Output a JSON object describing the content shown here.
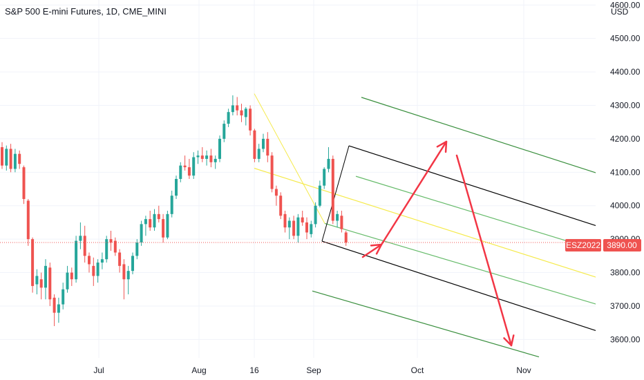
{
  "chart_data": {
    "type": "candlestick",
    "title": "S&P 500 E-mini Futures, 1D, CME_MINI",
    "currency": "USD",
    "y_ticks": [
      "4600.00",
      "4500.00",
      "4400.00",
      "4300.00",
      "4200.00",
      "4100.00",
      "4000.00",
      "3900.00",
      "3800.00",
      "3700.00",
      "3600.00"
    ],
    "x_ticks": [
      "Jul",
      "Aug",
      "16",
      "Sep",
      "Oct",
      "Nov"
    ],
    "ylim": [
      3545,
      4615
    ],
    "symbol_badge": "ESZ2022",
    "last_price": 3890.0,
    "last_price_label": "3890.00",
    "colors": {
      "up": "#26a69a",
      "down": "#ef5350",
      "last_price_line": "#ef5350",
      "channel_mid": "#f5ea4a",
      "channel_inner": "#66bb6a",
      "channel_outer": "#388e3c",
      "channel_base": "#000000",
      "projection_arrows": "#f23645"
    },
    "candles": [
      {
        "o": 4175,
        "h": 4190,
        "l": 4110,
        "c": 4120
      },
      {
        "o": 4120,
        "h": 4180,
        "l": 4105,
        "c": 4170
      },
      {
        "o": 4170,
        "h": 4185,
        "l": 4100,
        "c": 4110
      },
      {
        "o": 4110,
        "h": 4170,
        "l": 4100,
        "c": 4155
      },
      {
        "o": 4155,
        "h": 4165,
        "l": 4110,
        "c": 4125
      },
      {
        "o": 4115,
        "h": 4120,
        "l": 4005,
        "c": 4020
      },
      {
        "o": 4015,
        "h": 4020,
        "l": 3880,
        "c": 3900
      },
      {
        "o": 3900,
        "h": 3905,
        "l": 3740,
        "c": 3760
      },
      {
        "o": 3765,
        "h": 3810,
        "l": 3735,
        "c": 3790
      },
      {
        "o": 3780,
        "h": 3800,
        "l": 3720,
        "c": 3755
      },
      {
        "o": 3755,
        "h": 3840,
        "l": 3720,
        "c": 3820
      },
      {
        "o": 3815,
        "h": 3830,
        "l": 3700,
        "c": 3720
      },
      {
        "o": 3725,
        "h": 3735,
        "l": 3640,
        "c": 3680
      },
      {
        "o": 3680,
        "h": 3725,
        "l": 3650,
        "c": 3705
      },
      {
        "o": 3705,
        "h": 3770,
        "l": 3690,
        "c": 3750
      },
      {
        "o": 3750,
        "h": 3820,
        "l": 3740,
        "c": 3800
      },
      {
        "o": 3800,
        "h": 3815,
        "l": 3760,
        "c": 3780
      },
      {
        "o": 3780,
        "h": 3910,
        "l": 3770,
        "c": 3895
      },
      {
        "o": 3895,
        "h": 3950,
        "l": 3870,
        "c": 3910
      },
      {
        "o": 3910,
        "h": 3940,
        "l": 3830,
        "c": 3850
      },
      {
        "o": 3850,
        "h": 3860,
        "l": 3800,
        "c": 3825
      },
      {
        "o": 3820,
        "h": 3845,
        "l": 3760,
        "c": 3790
      },
      {
        "o": 3790,
        "h": 3840,
        "l": 3770,
        "c": 3830
      },
      {
        "o": 3830,
        "h": 3860,
        "l": 3810,
        "c": 3840
      },
      {
        "o": 3840,
        "h": 3910,
        "l": 3830,
        "c": 3900
      },
      {
        "o": 3900,
        "h": 3925,
        "l": 3865,
        "c": 3890
      },
      {
        "o": 3895,
        "h": 3905,
        "l": 3850,
        "c": 3860
      },
      {
        "o": 3860,
        "h": 3870,
        "l": 3800,
        "c": 3820
      },
      {
        "o": 3825,
        "h": 3840,
        "l": 3720,
        "c": 3780
      },
      {
        "o": 3780,
        "h": 3820,
        "l": 3735,
        "c": 3805
      },
      {
        "o": 3805,
        "h": 3860,
        "l": 3795,
        "c": 3850
      },
      {
        "o": 3850,
        "h": 3900,
        "l": 3840,
        "c": 3890
      },
      {
        "o": 3890,
        "h": 3955,
        "l": 3880,
        "c": 3945
      },
      {
        "o": 3945,
        "h": 3970,
        "l": 3910,
        "c": 3960
      },
      {
        "o": 3960,
        "h": 3985,
        "l": 3925,
        "c": 3935
      },
      {
        "o": 3935,
        "h": 3990,
        "l": 3925,
        "c": 3975
      },
      {
        "o": 3975,
        "h": 4000,
        "l": 3950,
        "c": 3960
      },
      {
        "o": 3960,
        "h": 3975,
        "l": 3890,
        "c": 3905
      },
      {
        "o": 3905,
        "h": 3985,
        "l": 3900,
        "c": 3975
      },
      {
        "o": 3975,
        "h": 4045,
        "l": 3965,
        "c": 4030
      },
      {
        "o": 4030,
        "h": 4090,
        "l": 4020,
        "c": 4080
      },
      {
        "o": 4080,
        "h": 4130,
        "l": 4070,
        "c": 4120
      },
      {
        "o": 4120,
        "h": 4150,
        "l": 4105,
        "c": 4115
      },
      {
        "o": 4115,
        "h": 4140,
        "l": 4080,
        "c": 4090
      },
      {
        "o": 4090,
        "h": 4160,
        "l": 4080,
        "c": 4145
      },
      {
        "o": 4145,
        "h": 4165,
        "l": 4125,
        "c": 4150
      },
      {
        "o": 4150,
        "h": 4175,
        "l": 4130,
        "c": 4140
      },
      {
        "o": 4140,
        "h": 4165,
        "l": 4120,
        "c": 4150
      },
      {
        "o": 4150,
        "h": 4170,
        "l": 4115,
        "c": 4130
      },
      {
        "o": 4130,
        "h": 4150,
        "l": 4110,
        "c": 4140
      },
      {
        "o": 4140,
        "h": 4210,
        "l": 4130,
        "c": 4200
      },
      {
        "o": 4200,
        "h": 4255,
        "l": 4190,
        "c": 4245
      },
      {
        "o": 4245,
        "h": 4290,
        "l": 4235,
        "c": 4280
      },
      {
        "o": 4280,
        "h": 4330,
        "l": 4270,
        "c": 4300
      },
      {
        "o": 4300,
        "h": 4325,
        "l": 4270,
        "c": 4285
      },
      {
        "o": 4285,
        "h": 4305,
        "l": 4250,
        "c": 4270
      },
      {
        "o": 4265,
        "h": 4295,
        "l": 4240,
        "c": 4290
      },
      {
        "o": 4290,
        "h": 4300,
        "l": 4210,
        "c": 4225
      },
      {
        "o": 4225,
        "h": 4230,
        "l": 4130,
        "c": 4140
      },
      {
        "o": 4140,
        "h": 4185,
        "l": 4130,
        "c": 4170
      },
      {
        "o": 4170,
        "h": 4215,
        "l": 4160,
        "c": 4200
      },
      {
        "o": 4200,
        "h": 4220,
        "l": 4130,
        "c": 4150
      },
      {
        "o": 4150,
        "h": 4160,
        "l": 4040,
        "c": 4050
      },
      {
        "o": 4050,
        "h": 4060,
        "l": 4000,
        "c": 4030
      },
      {
        "o": 4030,
        "h": 4040,
        "l": 3960,
        "c": 3970
      },
      {
        "o": 3975,
        "h": 3985,
        "l": 3920,
        "c": 3935
      },
      {
        "o": 3935,
        "h": 3965,
        "l": 3900,
        "c": 3955
      },
      {
        "o": 3955,
        "h": 3970,
        "l": 3900,
        "c": 3910
      },
      {
        "o": 3910,
        "h": 3975,
        "l": 3890,
        "c": 3965
      },
      {
        "o": 3965,
        "h": 3985,
        "l": 3940,
        "c": 3950
      },
      {
        "o": 3950,
        "h": 3965,
        "l": 3900,
        "c": 3920
      },
      {
        "o": 3915,
        "h": 3955,
        "l": 3905,
        "c": 3945
      },
      {
        "o": 3945,
        "h": 4010,
        "l": 3935,
        "c": 4000
      },
      {
        "o": 4000,
        "h": 4075,
        "l": 3995,
        "c": 4060
      },
      {
        "o": 4060,
        "h": 4115,
        "l": 4050,
        "c": 4110
      },
      {
        "o": 4110,
        "h": 4175,
        "l": 4100,
        "c": 4140
      },
      {
        "o": 4140,
        "h": 4150,
        "l": 3945,
        "c": 3955
      },
      {
        "o": 3955,
        "h": 3985,
        "l": 3935,
        "c": 3975
      },
      {
        "o": 3970,
        "h": 3985,
        "l": 3920,
        "c": 3930
      },
      {
        "o": 3920,
        "h": 3925,
        "l": 3880,
        "c": 3890
      }
    ]
  }
}
